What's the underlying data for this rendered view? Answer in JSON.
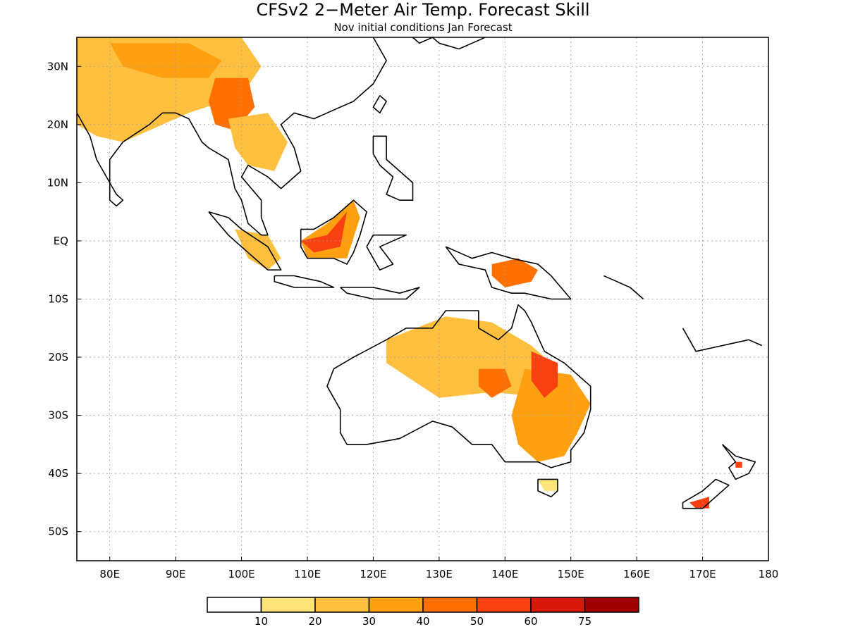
{
  "title": "CFSv2 2−Meter Air Temp. Forecast Skill",
  "subtitle": "Nov initial conditions  Jan Forecast",
  "map": {
    "lon_range": [
      75,
      180
    ],
    "lat_range": [
      -55,
      35
    ],
    "lon_ticks": [
      {
        "value": 80,
        "label": "80E"
      },
      {
        "value": 90,
        "label": "90E"
      },
      {
        "value": 100,
        "label": "100E"
      },
      {
        "value": 110,
        "label": "110E"
      },
      {
        "value": 120,
        "label": "120E"
      },
      {
        "value": 130,
        "label": "130E"
      },
      {
        "value": 140,
        "label": "140E"
      },
      {
        "value": 150,
        "label": "150E"
      },
      {
        "value": 160,
        "label": "160E"
      },
      {
        "value": 170,
        "label": "170E"
      },
      {
        "value": 180,
        "label": "180"
      }
    ],
    "lat_ticks": [
      {
        "value": 30,
        "label": "30N"
      },
      {
        "value": 20,
        "label": "20N"
      },
      {
        "value": 10,
        "label": "10N"
      },
      {
        "value": 0,
        "label": "EQ"
      },
      {
        "value": -10,
        "label": "10S"
      },
      {
        "value": -20,
        "label": "20S"
      },
      {
        "value": -30,
        "label": "30S"
      },
      {
        "value": -40,
        "label": "40S"
      },
      {
        "value": -50,
        "label": "50S"
      }
    ],
    "grid": true
  },
  "colorbar": {
    "colors": [
      "#ffffff",
      "#ffe47a",
      "#ffc040",
      "#ffa010",
      "#ff7000",
      "#f84010",
      "#d81808",
      "#a00000"
    ],
    "labels": [
      "10",
      "20",
      "30",
      "40",
      "50",
      "60",
      "75"
    ]
  },
  "skill_regions": [
    {
      "name": "South Asia",
      "level": 2,
      "points": [
        [
          75,
          35
        ],
        [
          100,
          35
        ],
        [
          103,
          30
        ],
        [
          100,
          25
        ],
        [
          92,
          22
        ],
        [
          88,
          20
        ],
        [
          82,
          17
        ],
        [
          78,
          18
        ],
        [
          75,
          20
        ]
      ]
    },
    {
      "name": "Himalaya / Tibet",
      "level": 3,
      "points": [
        [
          80,
          34
        ],
        [
          92,
          34
        ],
        [
          97,
          31
        ],
        [
          95,
          28
        ],
        [
          88,
          28
        ],
        [
          82,
          30
        ]
      ]
    },
    {
      "name": "Yunnan / Myanmar",
      "level": 4,
      "points": [
        [
          96,
          28
        ],
        [
          101,
          28
        ],
        [
          102,
          23
        ],
        [
          99,
          19
        ],
        [
          96,
          20
        ],
        [
          95,
          24
        ]
      ]
    },
    {
      "name": "Indochina",
      "level": 2,
      "points": [
        [
          98,
          21
        ],
        [
          104,
          22
        ],
        [
          107,
          17
        ],
        [
          105,
          12
        ],
        [
          101,
          13
        ],
        [
          99,
          16
        ]
      ]
    },
    {
      "name": "Sumatra",
      "level": 2,
      "points": [
        [
          99,
          2
        ],
        [
          104,
          1
        ],
        [
          106,
          -3
        ],
        [
          104,
          -5
        ],
        [
          101,
          -3
        ]
      ]
    },
    {
      "name": "Borneo",
      "level": 3,
      "points": [
        [
          109,
          0
        ],
        [
          113,
          3
        ],
        [
          117,
          7
        ],
        [
          118,
          4
        ],
        [
          116,
          -3
        ],
        [
          110,
          -3
        ]
      ]
    },
    {
      "name": "Borneo core",
      "level": 5,
      "points": [
        [
          109,
          0
        ],
        [
          113,
          1
        ],
        [
          116,
          5
        ],
        [
          115,
          -1
        ],
        [
          111,
          -2
        ]
      ]
    },
    {
      "name": "New Guinea",
      "level": 4,
      "points": [
        [
          138,
          -4
        ],
        [
          142,
          -3
        ],
        [
          145,
          -5
        ],
        [
          144,
          -7
        ],
        [
          140,
          -8
        ],
        [
          138,
          -6
        ]
      ]
    },
    {
      "name": "Northern Australia",
      "level": 2,
      "points": [
        [
          122,
          -17
        ],
        [
          131,
          -13
        ],
        [
          138,
          -14
        ],
        [
          144,
          -18
        ],
        [
          148,
          -22
        ],
        [
          147,
          -27
        ],
        [
          138,
          -26
        ],
        [
          130,
          -27
        ],
        [
          126,
          -24
        ],
        [
          122,
          -21
        ]
      ]
    },
    {
      "name": "Eastern Australia",
      "level": 3,
      "points": [
        [
          143,
          -22
        ],
        [
          150,
          -23
        ],
        [
          153,
          -28
        ],
        [
          151,
          -33
        ],
        [
          149,
          -37
        ],
        [
          145,
          -38
        ],
        [
          142,
          -35
        ],
        [
          141,
          -30
        ]
      ]
    },
    {
      "name": "Queensland core",
      "level": 5,
      "points": [
        [
          144,
          -19
        ],
        [
          148,
          -21
        ],
        [
          148,
          -25
        ],
        [
          146,
          -27
        ],
        [
          144,
          -24
        ]
      ]
    },
    {
      "name": "Central Australia",
      "level": 4,
      "points": [
        [
          136,
          -22
        ],
        [
          140,
          -22
        ],
        [
          141,
          -25
        ],
        [
          138,
          -27
        ],
        [
          136,
          -25
        ]
      ]
    },
    {
      "name": "Tasmania",
      "level": 1,
      "points": [
        [
          145,
          -41
        ],
        [
          148,
          -41
        ],
        [
          148,
          -43
        ],
        [
          146,
          -43
        ]
      ]
    },
    {
      "name": "New Zealand South",
      "level": 5,
      "points": [
        [
          168,
          -45
        ],
        [
          171,
          -44
        ],
        [
          171,
          -46
        ],
        [
          169,
          -46
        ]
      ]
    },
    {
      "name": "New Zealand North",
      "level": 5,
      "points": [
        [
          175,
          -38
        ],
        [
          176,
          -38
        ],
        [
          176,
          -39
        ],
        [
          175,
          -39
        ]
      ]
    }
  ],
  "coastlines": [
    {
      "name": "India",
      "points": [
        [
          75,
          22
        ],
        [
          77,
          18
        ],
        [
          78,
          14
        ],
        [
          80,
          10
        ],
        [
          80,
          14
        ],
        [
          82,
          17
        ],
        [
          86,
          20
        ],
        [
          88,
          22
        ],
        [
          90,
          22
        ],
        [
          92,
          21
        ],
        [
          94,
          17
        ],
        [
          95,
          16
        ]
      ]
    },
    {
      "name": "Sri Lanka",
      "points": [
        [
          80,
          10
        ],
        [
          81,
          8
        ],
        [
          82,
          7
        ],
        [
          81,
          6
        ],
        [
          80,
          7
        ],
        [
          80,
          10
        ]
      ]
    },
    {
      "name": "Southeast Asia",
      "points": [
        [
          95,
          16
        ],
        [
          98,
          14
        ],
        [
          99,
          9
        ],
        [
          100,
          7
        ],
        [
          101,
          3
        ],
        [
          103,
          1
        ],
        [
          104,
          1
        ],
        [
          103,
          4
        ],
        [
          103,
          7
        ],
        [
          100,
          11
        ],
        [
          101,
          13
        ],
        [
          104,
          11
        ],
        [
          106,
          9
        ],
        [
          109,
          12
        ],
        [
          108,
          16
        ],
        [
          106,
          20
        ],
        [
          108,
          22
        ],
        [
          111,
          21
        ],
        [
          113,
          22
        ],
        [
          117,
          24
        ],
        [
          120,
          27
        ],
        [
          122,
          31
        ],
        [
          121,
          33
        ],
        [
          120,
          35
        ]
      ]
    },
    {
      "name": "Korea / Japan",
      "points": [
        [
          126,
          35
        ],
        [
          127,
          34
        ],
        [
          129,
          35
        ],
        [
          130,
          34
        ],
        [
          133,
          33
        ],
        [
          135,
          34
        ],
        [
          137,
          35
        ]
      ]
    },
    {
      "name": "Taiwan",
      "points": [
        [
          121,
          25
        ],
        [
          122,
          24
        ],
        [
          121,
          22
        ],
        [
          120,
          23
        ],
        [
          121,
          25
        ]
      ]
    },
    {
      "name": "Sumatra",
      "points": [
        [
          95,
          5
        ],
        [
          98,
          4
        ],
        [
          100,
          2
        ],
        [
          104,
          -1
        ],
        [
          106,
          -5
        ],
        [
          104,
          -5
        ],
        [
          101,
          -2
        ],
        [
          98,
          1
        ],
        [
          95,
          5
        ]
      ]
    },
    {
      "name": "Java",
      "points": [
        [
          105,
          -6
        ],
        [
          108,
          -6
        ],
        [
          112,
          -7
        ],
        [
          114,
          -8
        ],
        [
          112,
          -8
        ],
        [
          108,
          -8
        ],
        [
          105,
          -7
        ],
        [
          105,
          -6
        ]
      ]
    },
    {
      "name": "Lesser Sunda",
      "points": [
        [
          115,
          -8
        ],
        [
          120,
          -8
        ],
        [
          124,
          -9
        ],
        [
          127,
          -8
        ],
        [
          125,
          -10
        ],
        [
          120,
          -10
        ],
        [
          116,
          -9
        ],
        [
          115,
          -8
        ]
      ]
    },
    {
      "name": "Borneo",
      "points": [
        [
          109,
          2
        ],
        [
          111,
          2
        ],
        [
          114,
          4
        ],
        [
          117,
          7
        ],
        [
          119,
          5
        ],
        [
          118,
          1
        ],
        [
          117,
          -2
        ],
        [
          116,
          -4
        ],
        [
          114,
          -3
        ],
        [
          110,
          -3
        ],
        [
          109,
          -1
        ],
        [
          109,
          2
        ]
      ]
    },
    {
      "name": "Sulawesi",
      "points": [
        [
          119,
          -1
        ],
        [
          120,
          1
        ],
        [
          125,
          1
        ],
        [
          121,
          -1
        ],
        [
          123,
          -4
        ],
        [
          121,
          -5
        ],
        [
          120,
          -3
        ],
        [
          119,
          -1
        ]
      ]
    },
    {
      "name": "Philippines",
      "points": [
        [
          120,
          18
        ],
        [
          122,
          18
        ],
        [
          122,
          14
        ],
        [
          124,
          12
        ],
        [
          126,
          10
        ],
        [
          126,
          7
        ],
        [
          124,
          7
        ],
        [
          122,
          8
        ],
        [
          123,
          11
        ],
        [
          121,
          13
        ],
        [
          120,
          15
        ],
        [
          120,
          18
        ]
      ]
    },
    {
      "name": "New Guinea",
      "points": [
        [
          131,
          -1
        ],
        [
          135,
          -3
        ],
        [
          138,
          -2
        ],
        [
          141,
          -3
        ],
        [
          145,
          -4
        ],
        [
          147,
          -6
        ],
        [
          150,
          -10
        ],
        [
          147,
          -10
        ],
        [
          143,
          -9
        ],
        [
          141,
          -9
        ],
        [
          138,
          -8
        ],
        [
          137,
          -5
        ],
        [
          133,
          -4
        ],
        [
          131,
          -1
        ]
      ]
    },
    {
      "name": "Australia",
      "points": [
        [
          114,
          -22
        ],
        [
          117,
          -20
        ],
        [
          122,
          -17
        ],
        [
          125,
          -15
        ],
        [
          129,
          -15
        ],
        [
          131,
          -12
        ],
        [
          136,
          -12
        ],
        [
          136,
          -15
        ],
        [
          139,
          -17
        ],
        [
          141,
          -15
        ],
        [
          142,
          -11
        ],
        [
          143,
          -12
        ],
        [
          144,
          -14
        ],
        [
          146,
          -19
        ],
        [
          149,
          -21
        ],
        [
          151,
          -23
        ],
        [
          153,
          -25
        ],
        [
          153,
          -29
        ],
        [
          152,
          -33
        ],
        [
          150,
          -36
        ],
        [
          150,
          -38
        ],
        [
          147,
          -39
        ],
        [
          145,
          -38
        ],
        [
          142,
          -38
        ],
        [
          140,
          -38
        ],
        [
          138,
          -35
        ],
        [
          135,
          -35
        ],
        [
          132,
          -32
        ],
        [
          129,
          -31
        ],
        [
          124,
          -34
        ],
        [
          119,
          -35
        ],
        [
          116,
          -35
        ],
        [
          115,
          -33
        ],
        [
          115,
          -29
        ],
        [
          113,
          -25
        ],
        [
          114,
          -22
        ]
      ]
    },
    {
      "name": "Tasmania",
      "points": [
        [
          145,
          -41
        ],
        [
          148,
          -41
        ],
        [
          148,
          -43
        ],
        [
          147,
          -44
        ],
        [
          145,
          -43
        ],
        [
          145,
          -41
        ]
      ]
    },
    {
      "name": "New Zealand North",
      "points": [
        [
          173,
          -35
        ],
        [
          175,
          -37
        ],
        [
          178,
          -38
        ],
        [
          177,
          -40
        ],
        [
          175,
          -41
        ],
        [
          174,
          -39
        ],
        [
          175,
          -38
        ],
        [
          173,
          -35
        ]
      ]
    },
    {
      "name": "New Zealand South",
      "points": [
        [
          172,
          -41
        ],
        [
          174,
          -42
        ],
        [
          172,
          -44
        ],
        [
          170,
          -46
        ],
        [
          167,
          -46
        ],
        [
          167,
          -45
        ],
        [
          170,
          -43
        ],
        [
          172,
          -41
        ]
      ]
    },
    {
      "name": "Solomon Islands",
      "points": [
        [
          155,
          -6
        ],
        [
          157,
          -7
        ],
        [
          159,
          -8
        ],
        [
          161,
          -10
        ]
      ]
    },
    {
      "name": "Vanuatu / Fiji",
      "points": [
        [
          167,
          -15
        ],
        [
          168,
          -17
        ],
        [
          169,
          -19
        ],
        [
          177,
          -17
        ],
        [
          179,
          -18
        ]
      ]
    }
  ]
}
